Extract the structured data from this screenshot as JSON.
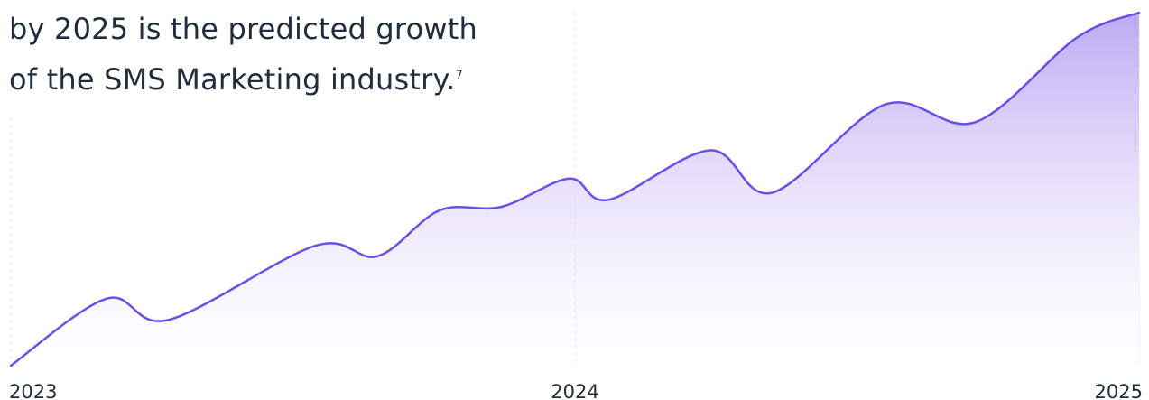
{
  "headline": {
    "line1": "by 2025 is the predicted growth",
    "line2": "of the SMS Marketing industry.",
    "footnote": "7"
  },
  "chart_data": {
    "type": "area",
    "title": "",
    "xlabel": "",
    "ylabel": "",
    "x_ticks": [
      2023,
      2024,
      2025
    ],
    "x_tick_labels": [
      "2023",
      "2024",
      "2025"
    ],
    "xlim": [
      2023,
      2025
    ],
    "ylim": [
      0,
      100
    ],
    "grid": "vertical dashed at ticks",
    "line_color": "#6e4de8",
    "fill_color_top": "#b8a6f3",
    "fill_color_bottom": "#ffffff",
    "series": [
      {
        "x": [
          2023.0,
          2023.17,
          2023.28,
          2023.54,
          2023.65,
          2023.76,
          2023.87,
          2023.99,
          2024.06,
          2024.24,
          2024.35,
          2024.55,
          2024.71,
          2024.89,
          2025.0
        ],
        "values": [
          0,
          19,
          13,
          34,
          31,
          44,
          45,
          53,
          47,
          61,
          49,
          74,
          69,
          93,
          100
        ]
      }
    ]
  }
}
